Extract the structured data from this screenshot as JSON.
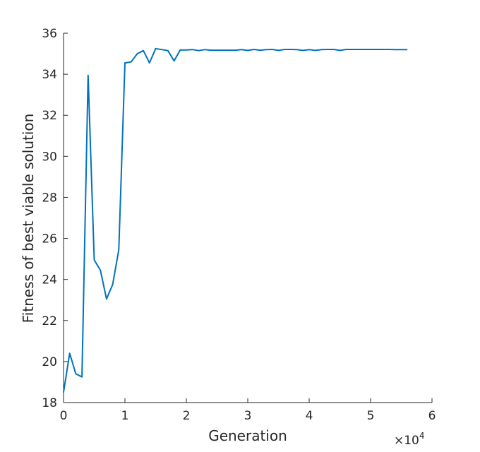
{
  "chart_data": {
    "type": "line",
    "title": "",
    "xlabel": "Generation",
    "ylabel": "Fitness of best viable solution",
    "xlim": [
      0,
      6
    ],
    "ylim": [
      18,
      36
    ],
    "x_ticks": [
      "0",
      "1",
      "2",
      "3",
      "4",
      "5",
      "6"
    ],
    "y_ticks": [
      "18",
      "20",
      "22",
      "24",
      "26",
      "28",
      "30",
      "32",
      "34",
      "36"
    ],
    "x_multiplier": {
      "base": "×10",
      "exponent": "4"
    },
    "grid": false,
    "series_color": "#0072BD",
    "series": [
      {
        "x": [
          0,
          0.1,
          0.2,
          0.3,
          0.4,
          0.5,
          0.6,
          0.7,
          0.8,
          0.9,
          1.0,
          1.1,
          1.2,
          1.3,
          1.4,
          1.5,
          1.6,
          1.7,
          1.8,
          1.9,
          2.0,
          2.1,
          2.2,
          2.3,
          2.4,
          2.5,
          2.6,
          2.7,
          2.8,
          2.9,
          3.0,
          3.1,
          3.2,
          3.3,
          3.4,
          3.5,
          3.6,
          3.7,
          3.8,
          3.9,
          4.0,
          4.1,
          4.2,
          4.3,
          4.4,
          4.5,
          4.6,
          4.7,
          4.8,
          4.9,
          5.0,
          5.1,
          5.2,
          5.3,
          5.4,
          5.5,
          5.6
        ],
        "y": [
          18.5,
          20.4,
          19.4,
          19.25,
          33.95,
          24.95,
          24.45,
          23.05,
          23.75,
          25.45,
          34.55,
          34.6,
          35.0,
          35.15,
          34.55,
          35.25,
          35.2,
          35.15,
          34.65,
          35.18,
          35.18,
          35.2,
          35.15,
          35.2,
          35.17,
          35.17,
          35.17,
          35.17,
          35.17,
          35.2,
          35.16,
          35.21,
          35.17,
          35.2,
          35.21,
          35.16,
          35.21,
          35.21,
          35.2,
          35.16,
          35.2,
          35.16,
          35.2,
          35.21,
          35.21,
          35.16,
          35.21,
          35.21,
          35.21,
          35.21,
          35.21,
          35.21,
          35.21,
          35.21,
          35.2,
          35.2,
          35.2
        ]
      }
    ]
  }
}
